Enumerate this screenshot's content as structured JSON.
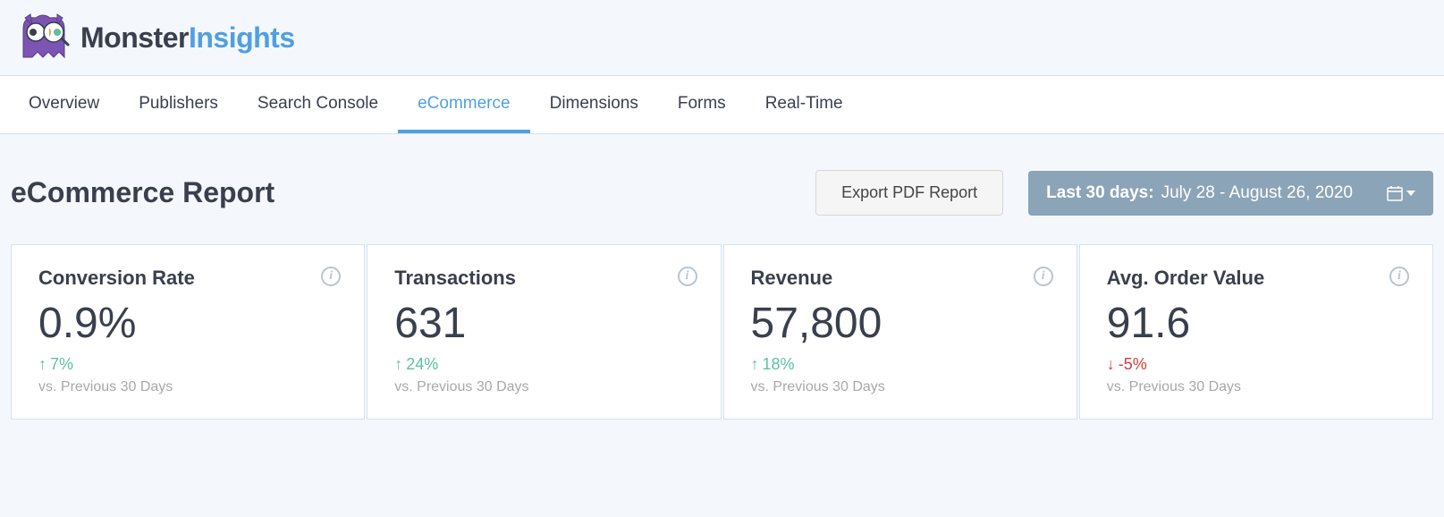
{
  "brand": {
    "name_part1": "Monster",
    "name_part2": "Insights",
    "color_text": "#393f4c",
    "color_accent": "#509fe1"
  },
  "tabs": [
    {
      "label": "Overview",
      "active": false
    },
    {
      "label": "Publishers",
      "active": false
    },
    {
      "label": "Search Console",
      "active": false
    },
    {
      "label": "eCommerce",
      "active": true
    },
    {
      "label": "Dimensions",
      "active": false
    },
    {
      "label": "Forms",
      "active": false
    },
    {
      "label": "Real-Time",
      "active": false
    }
  ],
  "report": {
    "title": "eCommerce Report",
    "export_label": "Export PDF Report",
    "date_range_label": "Last 30 days:",
    "date_range_value": "July 28 - August 26, 2020"
  },
  "metrics": [
    {
      "title": "Conversion Rate",
      "value": "0.9%",
      "change": "7%",
      "direction": "up",
      "compare": "vs. Previous 30 Days"
    },
    {
      "title": "Transactions",
      "value": "631",
      "change": "24%",
      "direction": "up",
      "compare": "vs. Previous 30 Days"
    },
    {
      "title": "Revenue",
      "value": "57,800",
      "change": "18%",
      "direction": "up",
      "compare": "vs. Previous 30 Days"
    },
    {
      "title": "Avg. Order Value",
      "value": "91.6",
      "change": "-5%",
      "direction": "down",
      "compare": "vs. Previous 30 Days"
    }
  ],
  "colors": {
    "page_bg": "#f4f8fd",
    "card_bg": "#ffffff",
    "border": "#d6e2ed",
    "text": "#393f4c",
    "muted": "#a8a8a8",
    "up": "#5cc0a5",
    "down": "#d73b3b",
    "datebar_bg": "#8ba4b7",
    "tab_active": "#509fe1"
  }
}
